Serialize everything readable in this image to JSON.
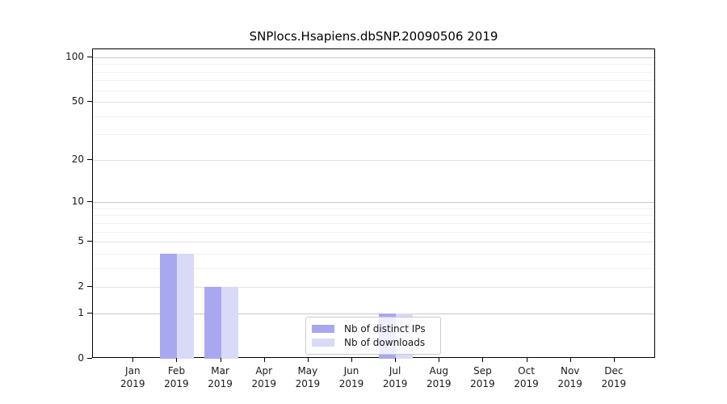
{
  "chart_data": {
    "type": "bar",
    "title": "SNPlocs.Hsapiens.dbSNP.20090506 2019",
    "categories": [
      "Jan",
      "Feb",
      "Mar",
      "Apr",
      "May",
      "Jun",
      "Jul",
      "Aug",
      "Sep",
      "Oct",
      "Nov",
      "Dec"
    ],
    "category_year": "2019",
    "series": [
      {
        "name": "Nb of distinct IPs",
        "color": "#a8a8f0",
        "values": [
          0,
          4,
          2,
          0,
          0,
          0,
          1,
          0,
          0,
          0,
          0,
          0
        ]
      },
      {
        "name": "Nb of downloads",
        "color": "#d9d9f8",
        "values": [
          0,
          4,
          2,
          0,
          0,
          0,
          1,
          0,
          0,
          0,
          0,
          0
        ]
      }
    ],
    "xlabel": "",
    "ylabel": "",
    "yscale": "log1p",
    "ylim": [
      0,
      100
    ],
    "yticks": [
      100,
      50,
      20,
      10,
      5,
      2,
      1,
      0
    ],
    "yticks_minor": [
      90,
      80,
      70,
      60,
      40,
      30,
      9,
      8,
      7,
      6,
      4,
      3
    ],
    "grid": true,
    "legend_position": "lower-center"
  },
  "style_colors": {
    "grid_decade": "#c9c9c9",
    "grid_labeled": "#e2e2e2",
    "grid_minor": "#f1f1f1",
    "spine": "#000000",
    "text": "#1a1a1a"
  }
}
